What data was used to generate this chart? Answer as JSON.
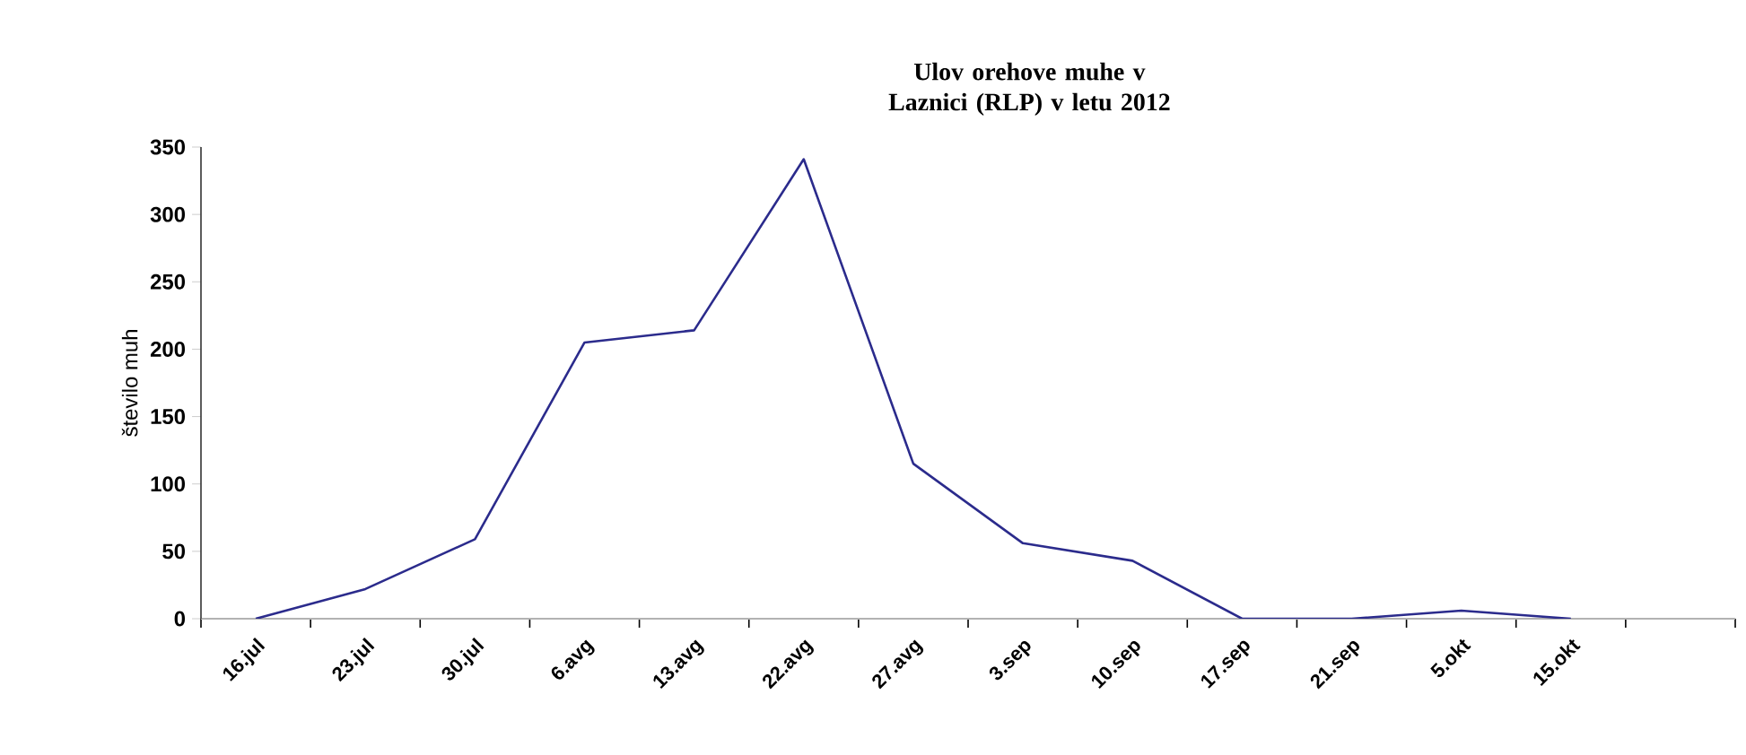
{
  "chart_data": {
    "type": "line",
    "title": "Ulov orehove muhe v Laznici (RLP) v letu 2012",
    "ylabel": "število muh",
    "categories": [
      "16.jul",
      "23.jul",
      "30.jul",
      "6.avg",
      "13.avg",
      "22.avg",
      "27.avg",
      "3.sep",
      "10.sep",
      "17.sep",
      "21.sep",
      "5.okt",
      "15.okt",
      null
    ],
    "series": [
      {
        "color": "#2b2b8c",
        "values": [
          0,
          22,
          59,
          205,
          214,
          341,
          115,
          56,
          43,
          0,
          0,
          6,
          0,
          null
        ]
      }
    ],
    "ylim": [
      0,
      350
    ],
    "yticks": [
      0,
      50,
      100,
      150,
      200,
      250,
      300,
      350
    ],
    "grid": false,
    "marker": "none",
    "line_style": "solid"
  }
}
